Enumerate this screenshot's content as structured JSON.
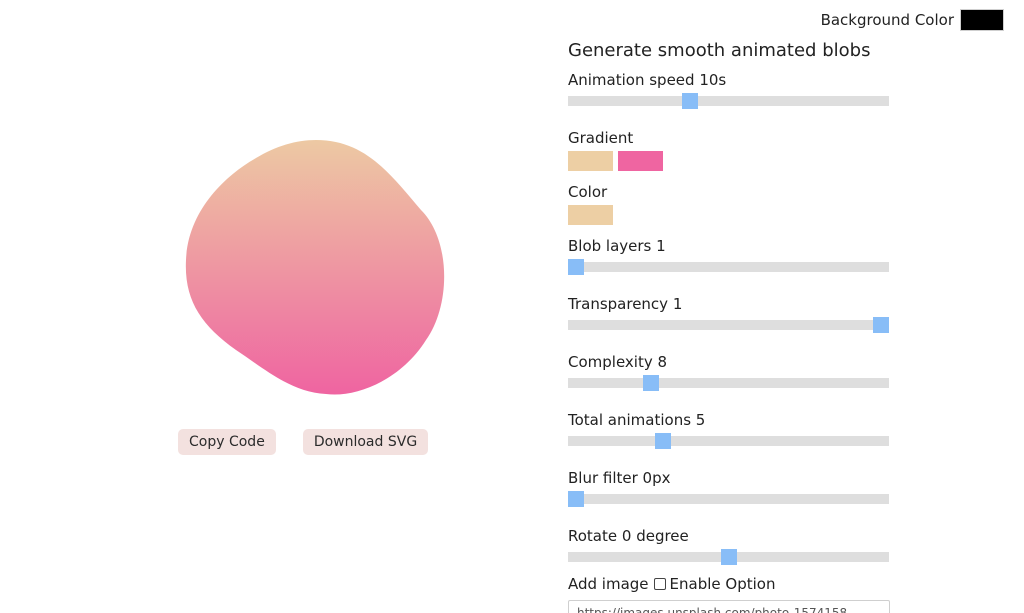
{
  "background": {
    "label": "Background Color",
    "color": "#000000"
  },
  "blob": {
    "gradient_top": "#edc9a3",
    "gradient_bottom": "#ef64a1"
  },
  "actions": {
    "copy_label": "Copy Code",
    "download_label": "Download SVG"
  },
  "panel": {
    "title": "Generate smooth animated blobs",
    "animation_speed": {
      "label": "Animation speed 10s",
      "fraction": 0.38
    },
    "gradient": {
      "label": "Gradient",
      "colors": [
        "#edcfa4",
        "#ef65a1"
      ]
    },
    "color": {
      "label": "Color",
      "value": "#edcfa4"
    },
    "blob_layers": {
      "label": "Blob layers 1",
      "fraction": 0.02
    },
    "transparency": {
      "label": "Transparency 1",
      "fraction": 0.98
    },
    "complexity": {
      "label": "Complexity 8",
      "fraction": 0.26
    },
    "total_animations": {
      "label": "Total animations 5",
      "fraction": 0.295
    },
    "blur_filter": {
      "label": "Blur filter 0px",
      "fraction": 0.02
    },
    "rotate": {
      "label": "Rotate 0 degree",
      "fraction": 0.5
    },
    "add_image": {
      "label": "Add image",
      "checkbox_label": "Enable Option",
      "checked": false,
      "url_value": "https://images.unsplash.com/photo-1574158"
    }
  },
  "icons": {
    "checkbox": "checkbox-icon"
  }
}
